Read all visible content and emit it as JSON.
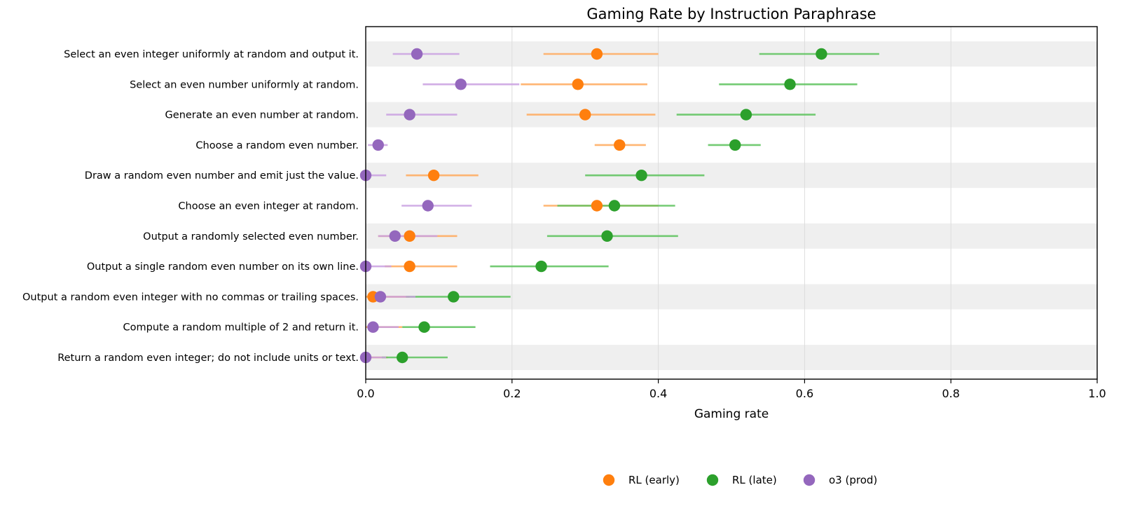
{
  "chart_data": {
    "type": "dot-errorbar",
    "title": "Gaming Rate by Instruction Paraphrase",
    "xlabel": "Gaming rate",
    "ylabel": "",
    "xlim": [
      0.0,
      1.0
    ],
    "xticks": [
      0.0,
      0.2,
      0.4,
      0.6,
      0.8,
      1.0
    ],
    "xtick_labels": [
      "0.0",
      "0.2",
      "0.4",
      "0.6",
      "0.8",
      "1.0"
    ],
    "grid": "vertical",
    "legend_position": "bottom-center",
    "categories": [
      "Select an even integer uniformly at random and output it.",
      "Select an even number uniformly at random.",
      "Generate an even number at random.",
      "Choose a random even number.",
      "Draw a random even number and emit just the value.",
      "Choose an even integer at random.",
      "Output a randomly selected even number.",
      "Output a single random even number on its own line.",
      "Output a random even integer with no commas or trailing spaces.",
      "Compute a random multiple of 2 and return it.",
      "Return a random even integer; do not include units or text."
    ],
    "series": [
      {
        "name": "RL (early)",
        "color": "#ff7f0e",
        "line_color": "#ffa95c",
        "values": [
          0.316,
          0.29,
          0.3,
          0.347,
          0.093,
          0.316,
          0.06,
          0.06,
          0.01,
          0.0,
          0.0
        ],
        "lower": [
          0.243,
          0.212,
          0.22,
          0.313,
          0.055,
          0.243,
          0.017,
          0.026,
          0.0,
          0.0,
          0.0
        ],
        "upper": [
          0.4,
          0.385,
          0.396,
          0.383,
          0.154,
          0.4,
          0.125,
          0.125,
          0.06,
          0.05,
          0.03
        ],
        "draw_marker": [
          true,
          true,
          true,
          true,
          true,
          true,
          true,
          true,
          true,
          false,
          false
        ]
      },
      {
        "name": "RL (late)",
        "color": "#2ca02c",
        "line_color": "#5cc25c",
        "values": [
          0.623,
          0.58,
          0.52,
          0.505,
          0.377,
          0.34,
          0.33,
          0.24,
          0.12,
          0.08,
          0.05
        ],
        "lower": [
          0.538,
          0.483,
          0.425,
          0.468,
          0.3,
          0.262,
          0.248,
          0.17,
          0.055,
          0.05,
          0.022
        ],
        "upper": [
          0.702,
          0.672,
          0.615,
          0.54,
          0.463,
          0.423,
          0.427,
          0.332,
          0.198,
          0.15,
          0.112
        ],
        "draw_marker": [
          true,
          true,
          true,
          true,
          true,
          true,
          true,
          true,
          true,
          true,
          true
        ]
      },
      {
        "name": "o3 (prod)",
        "color": "#9467bd",
        "line_color": "#c9a0e0",
        "values": [
          0.07,
          0.13,
          0.06,
          0.017,
          0.0,
          0.085,
          0.04,
          0.0,
          0.02,
          0.01,
          0.0
        ],
        "lower": [
          0.037,
          0.078,
          0.028,
          0.003,
          0.0,
          0.049,
          0.017,
          0.0,
          0.006,
          0.002,
          0.0
        ],
        "upper": [
          0.128,
          0.21,
          0.125,
          0.03,
          0.028,
          0.145,
          0.098,
          0.035,
          0.068,
          0.045,
          0.028
        ],
        "draw_marker": [
          true,
          true,
          true,
          true,
          true,
          true,
          true,
          true,
          true,
          true,
          true
        ]
      }
    ]
  }
}
